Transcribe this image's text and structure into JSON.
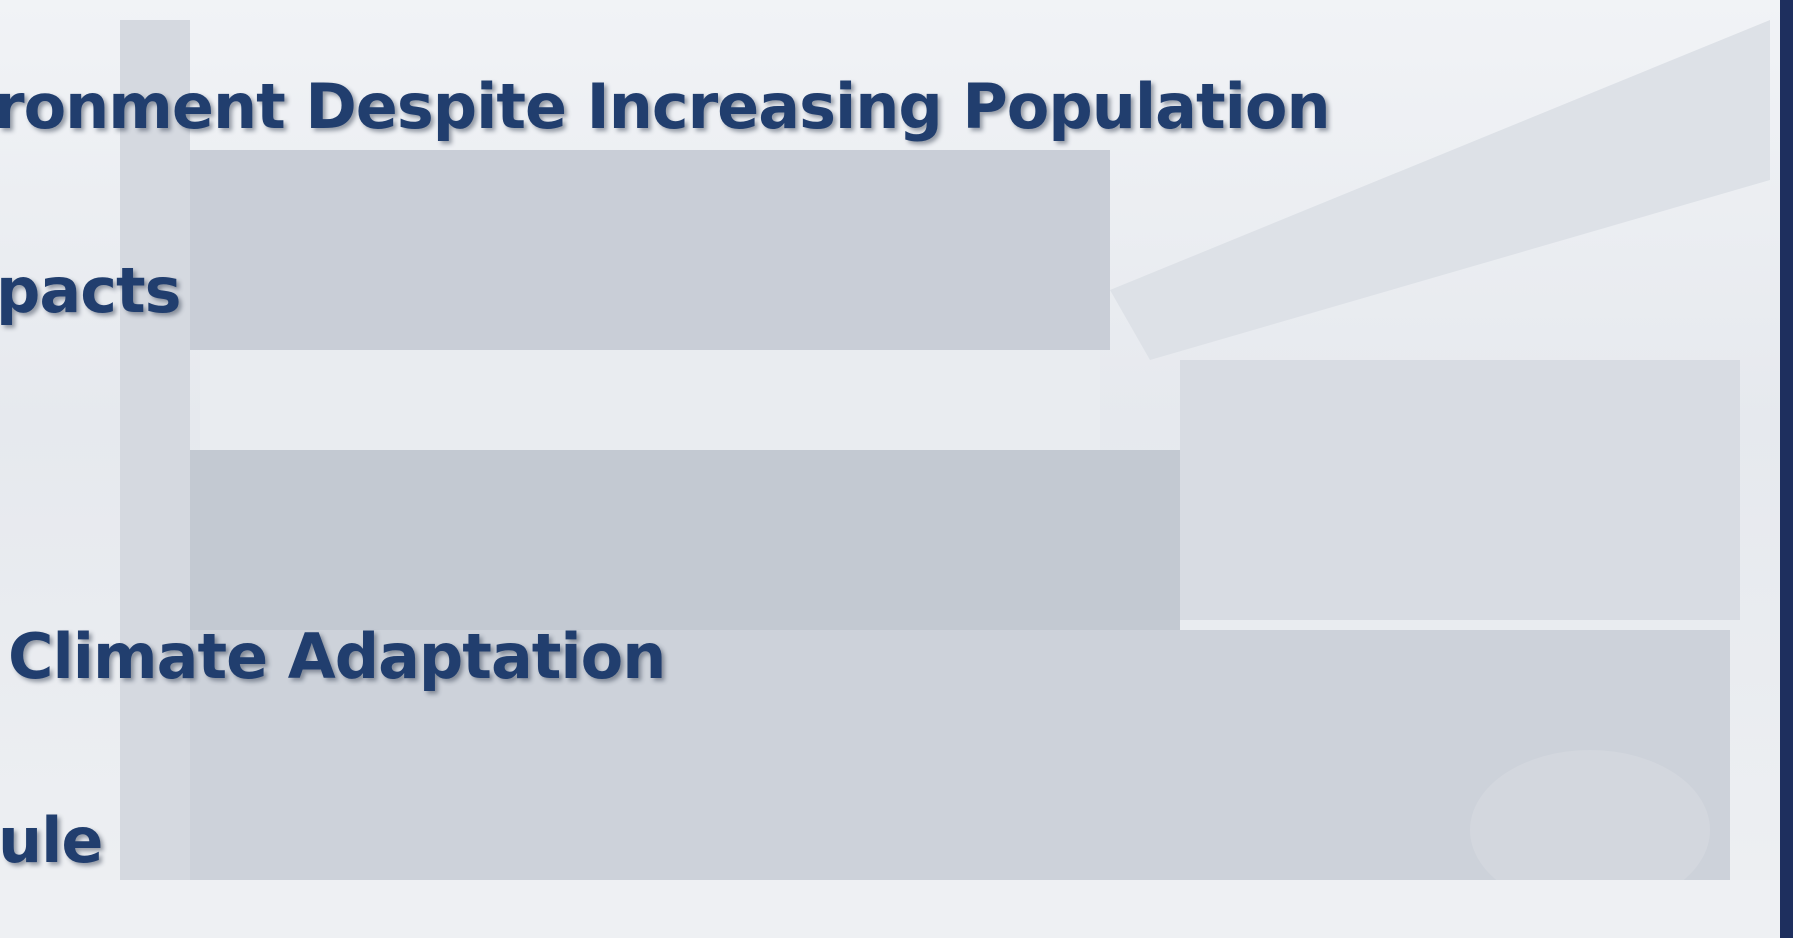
{
  "slide": {
    "bullets": [
      "ronment Despite Increasing Population",
      "pacts",
      "Climate Adaptation",
      "ule"
    ]
  }
}
